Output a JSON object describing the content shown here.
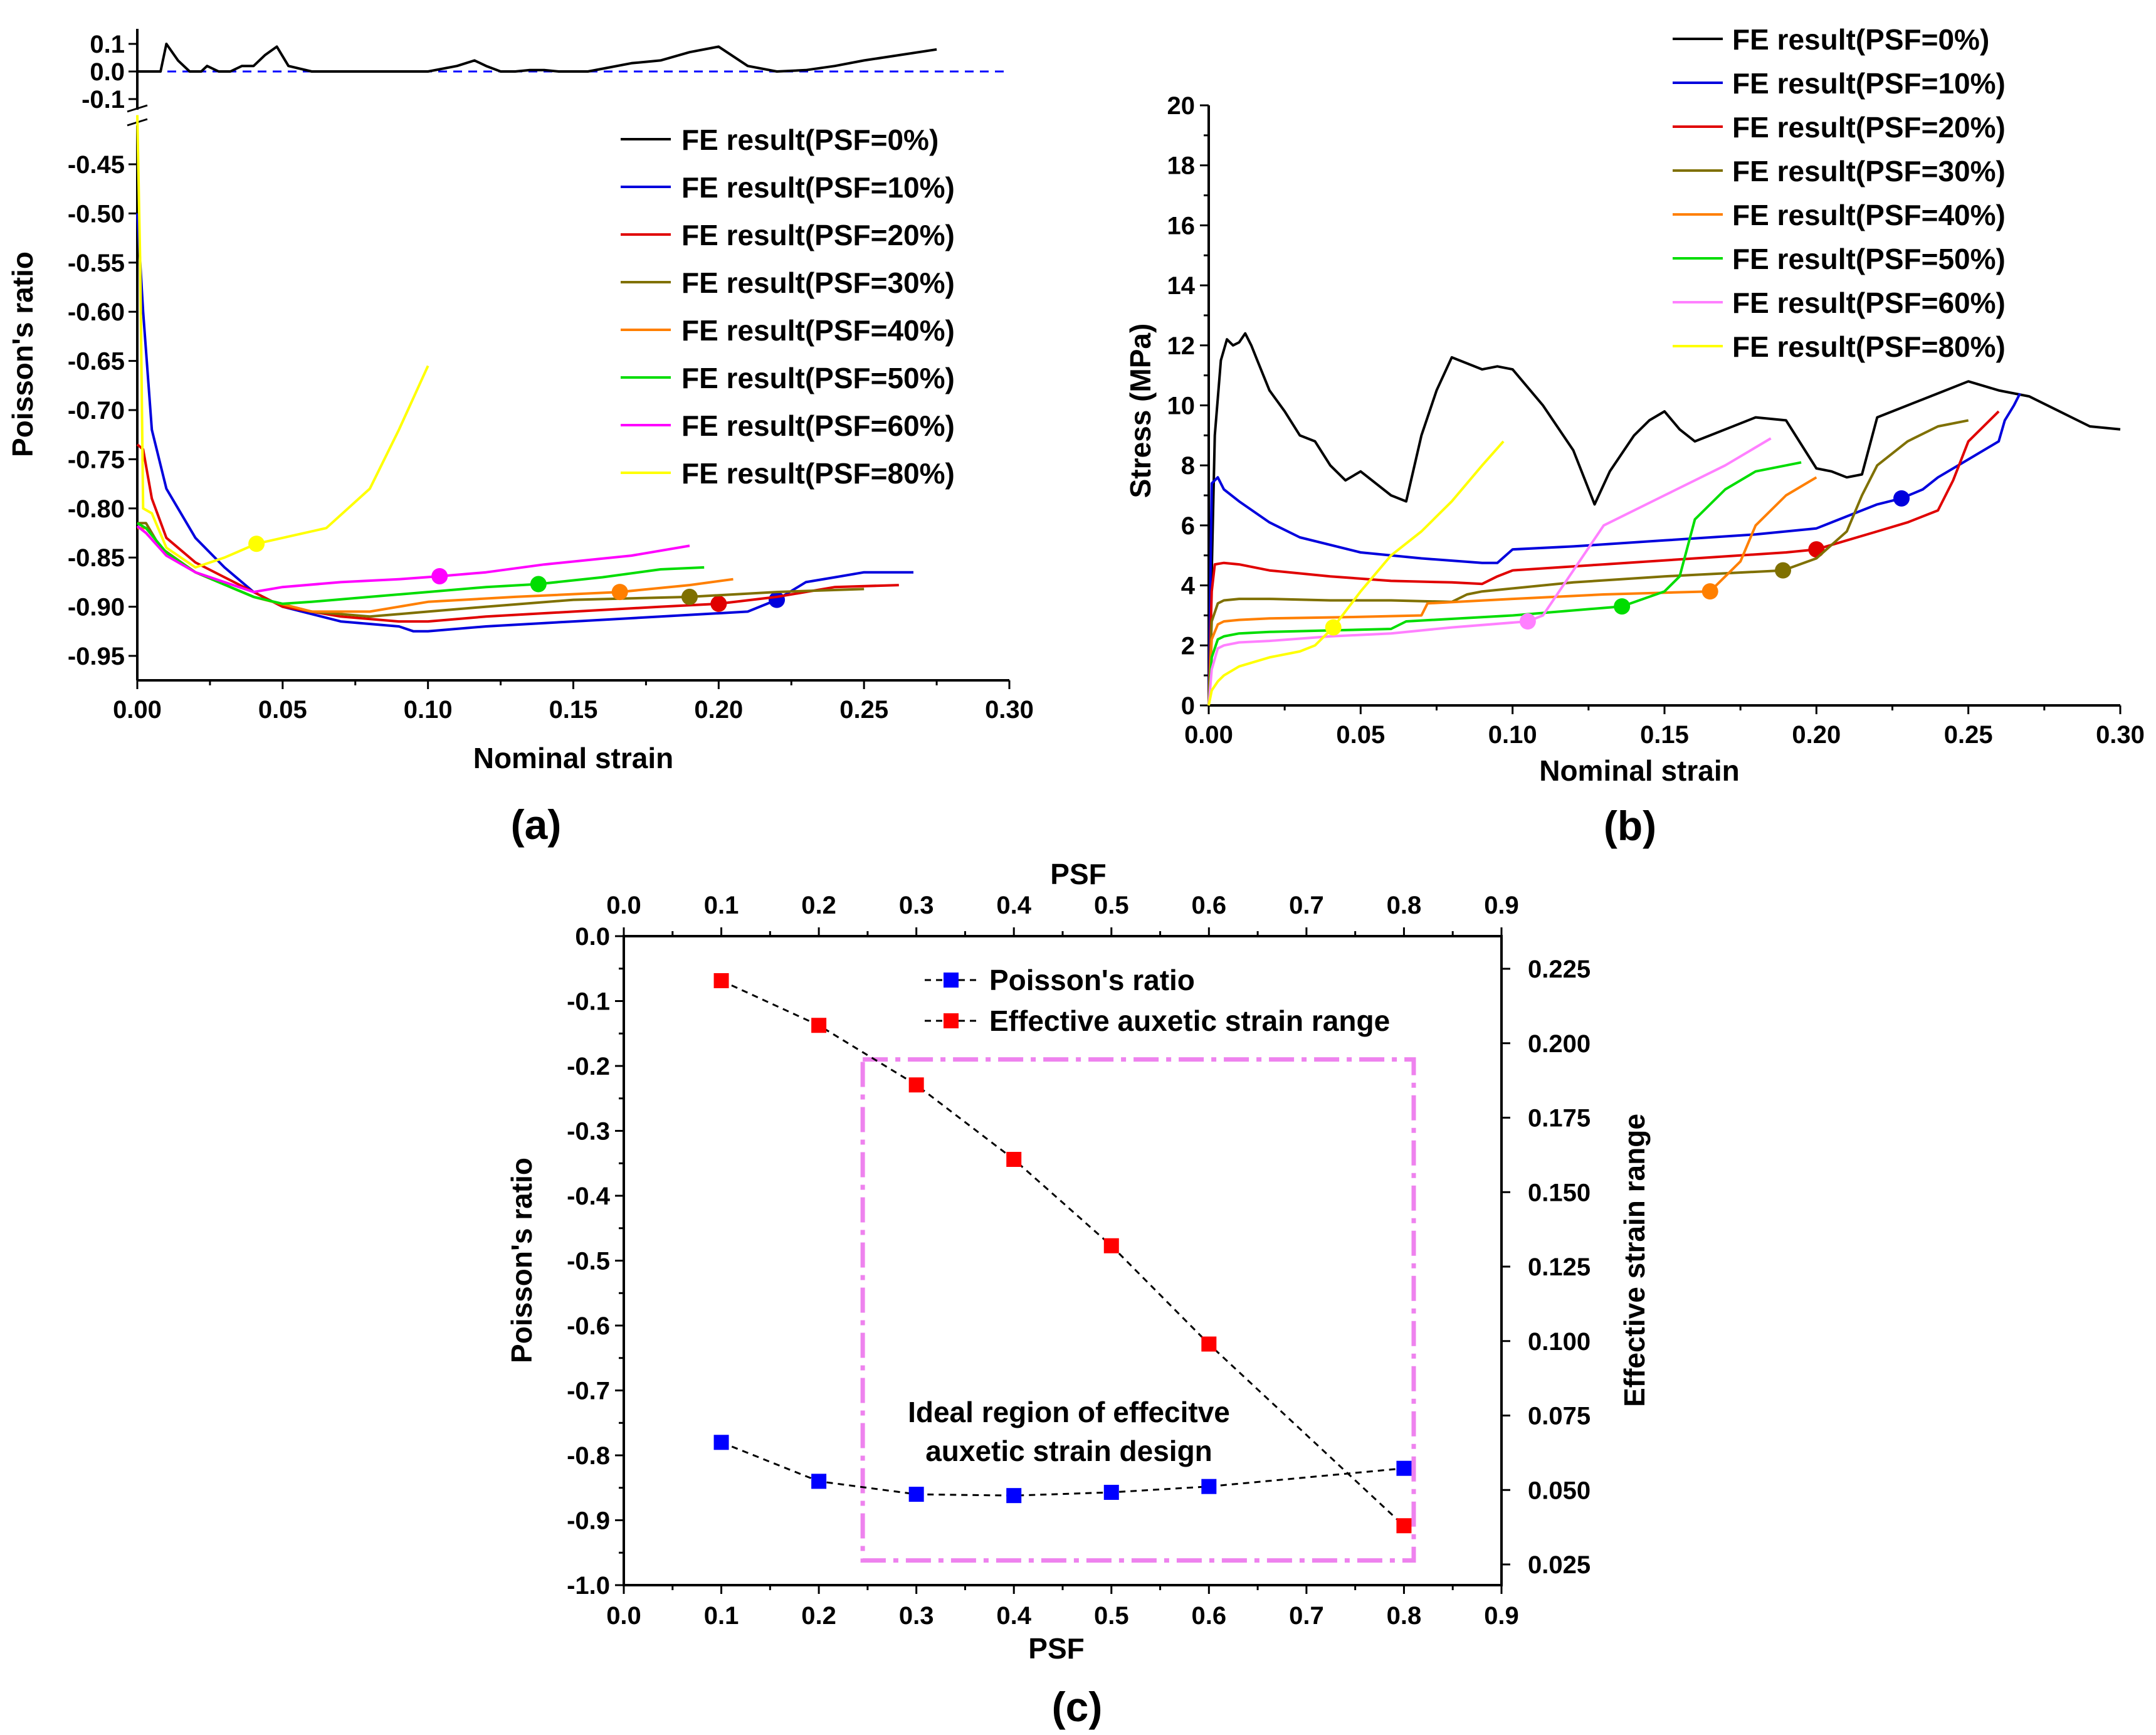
{
  "panels": {
    "a": {
      "label": "(a)"
    },
    "b": {
      "label": "(b)"
    },
    "c": {
      "label": "(c)",
      "annotation": [
        "Ideal region of effecitve",
        "auxetic strain design"
      ]
    }
  },
  "chart_data": [
    {
      "id": "a",
      "type": "line",
      "xlabel": "Nominal strain",
      "ylabel": "Poisson's ratio",
      "xlim": [
        0,
        0.3
      ],
      "xticks": [
        "0.00",
        "0.05",
        "0.10",
        "0.15",
        "0.20",
        "0.25",
        "0.30"
      ],
      "ylim_upper": [
        -0.12,
        0.12
      ],
      "yticks_upper": [
        "0.1",
        "0.0",
        "-0.1"
      ],
      "ylim_lower": [
        -0.97,
        -0.4
      ],
      "yticks_lower": [
        "-0.45",
        "-0.50",
        "-0.55",
        "-0.60",
        "-0.65",
        "-0.70",
        "-0.75",
        "-0.80",
        "-0.85",
        "-0.90",
        "-0.95"
      ],
      "legend_position": "top-right",
      "reference_line": 0,
      "series": [
        {
          "name": "FE result(PSF=0%)",
          "color": "#000000",
          "broken_axis": "upper",
          "x": [
            0,
            0.005,
            0.008,
            0.01,
            0.014,
            0.018,
            0.022,
            0.024,
            0.028,
            0.032,
            0.036,
            0.04,
            0.044,
            0.048,
            0.052,
            0.06,
            0.08,
            0.1,
            0.11,
            0.116,
            0.12,
            0.125,
            0.13,
            0.135,
            0.14,
            0.145,
            0.15,
            0.155,
            0.16,
            0.17,
            0.18,
            0.19,
            0.2,
            0.21,
            0.22,
            0.23,
            0.24,
            0.25,
            0.275
          ],
          "y": [
            0,
            0,
            0,
            0.1,
            0.04,
            0,
            0,
            0.02,
            0,
            0,
            0.02,
            0.02,
            0.06,
            0.09,
            0.02,
            0,
            0,
            0,
            0.02,
            0.04,
            0.02,
            0,
            0,
            0.005,
            0.005,
            0,
            0,
            0,
            0.01,
            0.03,
            0.04,
            0.07,
            0.09,
            0.02,
            0,
            0.005,
            0.02,
            0.04,
            0.08
          ]
        },
        {
          "name": "FE result(PSF=10%)",
          "color": "#0000dd",
          "x": [
            0,
            0.002,
            0.005,
            0.01,
            0.02,
            0.03,
            0.04,
            0.05,
            0.07,
            0.09,
            0.095,
            0.1,
            0.12,
            0.15,
            0.18,
            0.21,
            0.22,
            0.23,
            0.24,
            0.25,
            0.26,
            0.267
          ],
          "y": [
            -0.5,
            -0.6,
            -0.72,
            -0.78,
            -0.83,
            -0.86,
            -0.885,
            -0.9,
            -0.915,
            -0.92,
            -0.925,
            -0.925,
            -0.92,
            -0.915,
            -0.91,
            -0.905,
            -0.893,
            -0.875,
            -0.87,
            -0.865,
            -0.865,
            -0.865
          ],
          "marker_index": 16
        },
        {
          "name": "FE result(PSF=20%)",
          "color": "#e00000",
          "x": [
            0,
            0.002,
            0.005,
            0.01,
            0.02,
            0.03,
            0.04,
            0.05,
            0.07,
            0.09,
            0.1,
            0.12,
            0.15,
            0.18,
            0.2,
            0.22,
            0.24,
            0.262
          ],
          "y": [
            -0.735,
            -0.74,
            -0.79,
            -0.83,
            -0.855,
            -0.87,
            -0.885,
            -0.9,
            -0.91,
            -0.915,
            -0.915,
            -0.91,
            -0.905,
            -0.9,
            -0.897,
            -0.89,
            -0.88,
            -0.878
          ],
          "marker_index": 14
        },
        {
          "name": "FE result(PSF=30%)",
          "color": "#7f7000",
          "x": [
            0,
            0.003,
            0.008,
            0.02,
            0.04,
            0.06,
            0.08,
            0.1,
            0.12,
            0.15,
            0.19,
            0.22,
            0.25
          ],
          "y": [
            -0.815,
            -0.815,
            -0.84,
            -0.865,
            -0.89,
            -0.905,
            -0.91,
            -0.905,
            -0.9,
            -0.893,
            -0.89,
            -0.885,
            -0.882
          ],
          "marker_index": 10
        },
        {
          "name": "FE result(PSF=40%)",
          "color": "#ff7f00",
          "x": [
            0,
            0.003,
            0.01,
            0.02,
            0.04,
            0.06,
            0.08,
            0.1,
            0.13,
            0.166,
            0.19,
            0.205
          ],
          "y": [
            -0.82,
            -0.82,
            -0.845,
            -0.865,
            -0.89,
            -0.905,
            -0.905,
            -0.895,
            -0.89,
            -0.885,
            -0.878,
            -0.872
          ],
          "marker_index": 9
        },
        {
          "name": "FE result(PSF=50%)",
          "color": "#00dd00",
          "x": [
            0,
            0.003,
            0.01,
            0.02,
            0.04,
            0.05,
            0.06,
            0.08,
            0.1,
            0.12,
            0.138,
            0.16,
            0.18,
            0.195
          ],
          "y": [
            -0.815,
            -0.82,
            -0.845,
            -0.865,
            -0.89,
            -0.897,
            -0.895,
            -0.89,
            -0.885,
            -0.88,
            -0.877,
            -0.87,
            -0.862,
            -0.86
          ],
          "marker_index": 10
        },
        {
          "name": "FE result(PSF=60%)",
          "color": "#ff00ff",
          "x": [
            0,
            0.003,
            0.01,
            0.02,
            0.04,
            0.05,
            0.07,
            0.09,
            0.104,
            0.12,
            0.14,
            0.17,
            0.19
          ],
          "y": [
            -0.818,
            -0.825,
            -0.848,
            -0.865,
            -0.885,
            -0.88,
            -0.875,
            -0.872,
            -0.869,
            -0.865,
            -0.857,
            -0.848,
            -0.838
          ],
          "marker_index": 8
        },
        {
          "name": "FE result(PSF=80%)",
          "color": "#ffff00",
          "x": [
            0,
            0.001,
            0.002,
            0.005,
            0.01,
            0.02,
            0.03,
            0.041,
            0.05,
            0.065,
            0.08,
            0.09,
            0.1
          ],
          "y": [
            -0.4,
            -0.55,
            -0.8,
            -0.805,
            -0.84,
            -0.86,
            -0.85,
            -0.836,
            -0.83,
            -0.82,
            -0.78,
            -0.72,
            -0.655
          ],
          "marker_index": 7
        }
      ]
    },
    {
      "id": "b",
      "type": "line",
      "xlabel": "Nominal strain",
      "ylabel": "Stress (MPa)",
      "xlim": [
        0,
        0.3
      ],
      "xticks": [
        "0.00",
        "0.05",
        "0.10",
        "0.15",
        "0.20",
        "0.25",
        "0.30"
      ],
      "ylim": [
        0,
        20
      ],
      "yticks": [
        "0",
        "2",
        "4",
        "6",
        "8",
        "10",
        "12",
        "14",
        "16",
        "18",
        "20"
      ],
      "legend_position": "top-right",
      "series": [
        {
          "name": "FE result(PSF=0%)",
          "color": "#000000",
          "x": [
            0,
            0.002,
            0.004,
            0.006,
            0.008,
            0.01,
            0.012,
            0.014,
            0.016,
            0.02,
            0.025,
            0.03,
            0.035,
            0.04,
            0.045,
            0.05,
            0.055,
            0.06,
            0.065,
            0.07,
            0.075,
            0.08,
            0.085,
            0.09,
            0.095,
            0.1,
            0.11,
            0.12,
            0.127,
            0.132,
            0.14,
            0.145,
            0.15,
            0.155,
            0.16,
            0.165,
            0.17,
            0.18,
            0.19,
            0.2,
            0.205,
            0.21,
            0.215,
            0.22,
            0.23,
            0.24,
            0.25,
            0.26,
            0.27,
            0.28,
            0.29,
            0.3
          ],
          "y": [
            0,
            9,
            11.5,
            12.2,
            12,
            12.1,
            12.4,
            12,
            11.5,
            10.5,
            9.8,
            9,
            8.8,
            8,
            7.5,
            7.8,
            7.4,
            7,
            6.8,
            9,
            10.5,
            11.6,
            11.4,
            11.2,
            11.3,
            11.2,
            10,
            8.5,
            6.7,
            7.8,
            9,
            9.5,
            9.8,
            9.2,
            8.8,
            9,
            9.2,
            9.6,
            9.5,
            7.9,
            7.8,
            7.6,
            7.7,
            9.6,
            10,
            10.4,
            10.8,
            10.5,
            10.3,
            9.8,
            9.3,
            9.2
          ]
        },
        {
          "name": "FE result(PSF=10%)",
          "color": "#0000dd",
          "x": [
            0,
            0.001,
            0.003,
            0.005,
            0.01,
            0.02,
            0.03,
            0.05,
            0.07,
            0.09,
            0.095,
            0.1,
            0.12,
            0.15,
            0.18,
            0.2,
            0.21,
            0.22,
            0.228,
            0.235,
            0.24,
            0.25,
            0.26,
            0.262,
            0.265,
            0.267
          ],
          "y": [
            0,
            7.4,
            7.6,
            7.2,
            6.8,
            6.1,
            5.6,
            5.1,
            4.9,
            4.75,
            4.75,
            5.2,
            5.3,
            5.5,
            5.7,
            5.9,
            6.3,
            6.7,
            6.9,
            7.2,
            7.6,
            8.2,
            8.8,
            9.5,
            10,
            10.4
          ],
          "marker_index": 18
        },
        {
          "name": "FE result(PSF=20%)",
          "color": "#e00000",
          "x": [
            0,
            0.001,
            0.002,
            0.005,
            0.01,
            0.02,
            0.04,
            0.06,
            0.08,
            0.09,
            0.095,
            0.1,
            0.13,
            0.16,
            0.19,
            0.2,
            0.21,
            0.22,
            0.23,
            0.24,
            0.245,
            0.25,
            0.26
          ],
          "y": [
            0,
            3.8,
            4.7,
            4.75,
            4.7,
            4.5,
            4.3,
            4.15,
            4.1,
            4.05,
            4.3,
            4.5,
            4.7,
            4.9,
            5.1,
            5.2,
            5.5,
            5.8,
            6.1,
            6.5,
            7.5,
            8.8,
            9.8
          ],
          "marker_index": 15
        },
        {
          "name": "FE result(PSF=30%)",
          "color": "#7f7000",
          "x": [
            0,
            0.001,
            0.003,
            0.005,
            0.01,
            0.02,
            0.04,
            0.06,
            0.08,
            0.085,
            0.09,
            0.12,
            0.15,
            0.189,
            0.2,
            0.21,
            0.215,
            0.22,
            0.23,
            0.24,
            0.25
          ],
          "y": [
            0,
            2.8,
            3.4,
            3.5,
            3.55,
            3.55,
            3.5,
            3.5,
            3.45,
            3.7,
            3.8,
            4.1,
            4.3,
            4.5,
            4.9,
            5.8,
            7,
            8,
            8.8,
            9.3,
            9.5
          ],
          "marker_index": 13
        },
        {
          "name": "FE result(PSF=40%)",
          "color": "#ff7f00",
          "x": [
            0,
            0.001,
            0.003,
            0.005,
            0.01,
            0.02,
            0.05,
            0.07,
            0.072,
            0.1,
            0.13,
            0.165,
            0.175,
            0.18,
            0.19,
            0.2
          ],
          "y": [
            0,
            2.2,
            2.7,
            2.8,
            2.85,
            2.9,
            2.95,
            3,
            3.4,
            3.55,
            3.7,
            3.8,
            4.8,
            6,
            7,
            7.6
          ],
          "marker_index": 11
        },
        {
          "name": "FE result(PSF=50%)",
          "color": "#00dd00",
          "x": [
            0,
            0.001,
            0.003,
            0.005,
            0.01,
            0.02,
            0.04,
            0.06,
            0.065,
            0.1,
            0.136,
            0.15,
            0.155,
            0.16,
            0.17,
            0.18,
            0.195
          ],
          "y": [
            0,
            1.6,
            2.2,
            2.3,
            2.4,
            2.45,
            2.5,
            2.55,
            2.8,
            3,
            3.3,
            3.8,
            4.3,
            6.2,
            7.2,
            7.8,
            8.1
          ],
          "marker_index": 10
        },
        {
          "name": "FE result(PSF=60%)",
          "color": "#ff80ff",
          "x": [
            0,
            0.001,
            0.003,
            0.005,
            0.01,
            0.02,
            0.04,
            0.06,
            0.08,
            0.105,
            0.11,
            0.12,
            0.13,
            0.15,
            0.17,
            0.185
          ],
          "y": [
            0,
            1.2,
            1.9,
            2,
            2.1,
            2.15,
            2.3,
            2.4,
            2.6,
            2.8,
            3,
            4.5,
            6,
            7,
            8,
            8.9
          ],
          "marker_index": 9
        },
        {
          "name": "FE result(PSF=80%)",
          "color": "#ffff00",
          "x": [
            0,
            0.001,
            0.003,
            0.005,
            0.01,
            0.02,
            0.03,
            0.035,
            0.041,
            0.05,
            0.06,
            0.07,
            0.08,
            0.09,
            0.097
          ],
          "y": [
            0,
            0.5,
            0.8,
            1,
            1.3,
            1.6,
            1.8,
            2,
            2.6,
            3.8,
            5,
            5.8,
            6.8,
            8,
            8.8
          ],
          "marker_index": 8
        }
      ]
    },
    {
      "id": "c",
      "type": "line",
      "xlabel": "PSF",
      "x2label": "PSF",
      "ylabel": "Poisson's ratio",
      "y2label": "Effective strain range",
      "xlim": [
        0,
        0.9
      ],
      "xticks": [
        "0.0",
        "0.1",
        "0.2",
        "0.3",
        "0.4",
        "0.5",
        "0.6",
        "0.7",
        "0.8",
        "0.9"
      ],
      "ylim": [
        -1.0,
        0.0
      ],
      "yticks": [
        "0.0",
        "-0.1",
        "-0.2",
        "-0.3",
        "-0.4",
        "-0.5",
        "-0.6",
        "-0.7",
        "-0.8",
        "-0.9",
        "-1.0"
      ],
      "y2lim": [
        0.015,
        0.245
      ],
      "y2ticks": [
        "0.025",
        "0.050",
        "0.075",
        "0.100",
        "0.125",
        "0.150",
        "0.175",
        "0.200",
        "0.225"
      ],
      "legend_position": "top-center",
      "highlight_region": {
        "x": [
          0.245,
          0.81
        ],
        "y": [
          -0.962,
          -0.19
        ]
      },
      "series": [
        {
          "name": "Poisson's ratio",
          "color": "#0000ff",
          "axis": "left",
          "x": [
            0.1,
            0.2,
            0.3,
            0.4,
            0.5,
            0.6,
            0.8
          ],
          "y": [
            -0.78,
            -0.84,
            -0.86,
            -0.862,
            -0.857,
            -0.848,
            -0.82
          ]
        },
        {
          "name": "Effective auxetic strain range",
          "color": "#ff0000",
          "axis": "right",
          "x": [
            0.1,
            0.2,
            0.3,
            0.4,
            0.5,
            0.6,
            0.8
          ],
          "y": [
            0.221,
            0.206,
            0.186,
            0.161,
            0.132,
            0.099,
            0.038
          ]
        }
      ]
    }
  ]
}
